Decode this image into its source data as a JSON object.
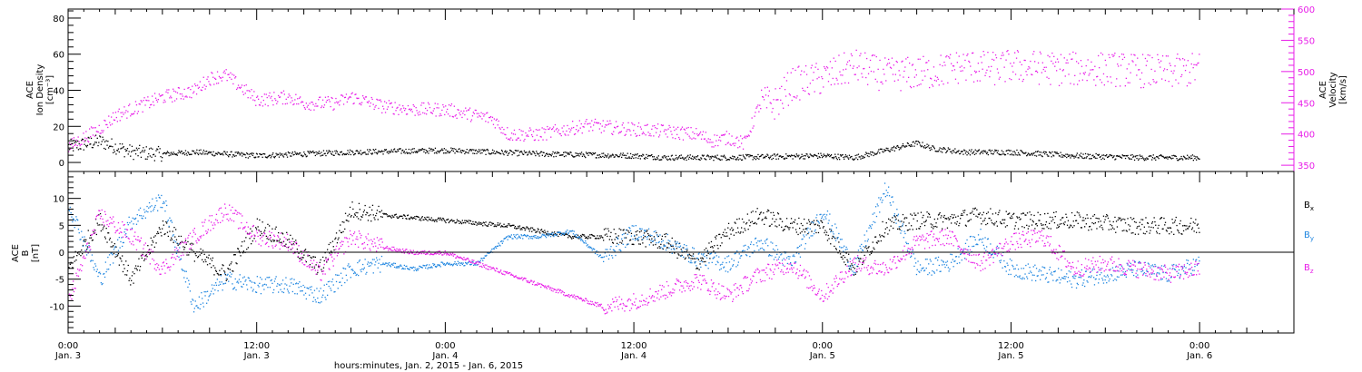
{
  "chart_data": [
    {
      "type": "scatter",
      "panel": "top",
      "ylabel_left": [
        "ACE",
        "Ion Density",
        "[cm⁻³]"
      ],
      "ylabel_right": [
        "ACE",
        "Velocity",
        "[km/s]"
      ],
      "ylim_left": [
        -5,
        85
      ],
      "yticks_left": [
        "0",
        "20",
        "40",
        "60",
        "80"
      ],
      "ylim_right": [
        340,
        600
      ],
      "yticks_right": [
        "350",
        "400",
        "450",
        "500",
        "550",
        "600"
      ],
      "series": [
        {
          "color": "#000000",
          "axis": "left",
          "points": [
            [
              0,
              9
            ],
            [
              2,
              12
            ],
            [
              4,
              6
            ],
            [
              6,
              5
            ],
            [
              8,
              6
            ],
            [
              12,
              4
            ],
            [
              18,
              6
            ],
            [
              24,
              7
            ],
            [
              30,
              5
            ],
            [
              36,
              4
            ],
            [
              38,
              3
            ],
            [
              42,
              3
            ],
            [
              48,
              4
            ],
            [
              50,
              3
            ],
            [
              54,
              11
            ],
            [
              55,
              8
            ],
            [
              57,
              6
            ],
            [
              60,
              6
            ],
            [
              64,
              4
            ],
            [
              68,
              3
            ],
            [
              72,
              3
            ]
          ]
        },
        {
          "color": "#e81ce8",
          "axis": "right",
          "points": [
            [
              0,
              380
            ],
            [
              2,
              410
            ],
            [
              3,
              430
            ],
            [
              6,
              460
            ],
            [
              8,
              470
            ],
            [
              9,
              490
            ],
            [
              10,
              495
            ],
            [
              12,
              455
            ],
            [
              14,
              460
            ],
            [
              15,
              450
            ],
            [
              17,
              450
            ],
            [
              18,
              460
            ],
            [
              20,
              445
            ],
            [
              22,
              440
            ],
            [
              24,
              440
            ],
            [
              25,
              435
            ],
            [
              27,
              425
            ],
            [
              28,
              400
            ],
            [
              30,
              400
            ],
            [
              32,
              410
            ],
            [
              33,
              415
            ],
            [
              35,
              410
            ],
            [
              38,
              405
            ],
            [
              40,
              400
            ],
            [
              41,
              390
            ],
            [
              42,
              395
            ],
            [
              43,
              385
            ],
            [
              44,
              450
            ],
            [
              45,
              450
            ],
            [
              46,
              480
            ],
            [
              48,
              490
            ],
            [
              50,
              510
            ],
            [
              52,
              495
            ],
            [
              55,
              500
            ],
            [
              57,
              510
            ],
            [
              59,
              505
            ],
            [
              60,
              510
            ],
            [
              63,
              505
            ],
            [
              66,
              505
            ],
            [
              70,
              500
            ],
            [
              72,
              505
            ]
          ]
        }
      ]
    },
    {
      "type": "scatter",
      "panel": "bottom",
      "ylabel": [
        "ACE",
        "B",
        "[nT]"
      ],
      "ylim": [
        -15,
        15
      ],
      "yticks": [
        "-10",
        "-5",
        "0",
        "5",
        "10"
      ],
      "legend": [
        {
          "label": "B",
          "sub": "x",
          "color": "#000000"
        },
        {
          "label": "B",
          "sub": "y",
          "color": "#1f86e0"
        },
        {
          "label": "B",
          "sub": "z",
          "color": "#e81ce8"
        }
      ],
      "series": [
        {
          "name": "Bx",
          "color": "#000000",
          "points": [
            [
              0,
              -3
            ],
            [
              2,
              6
            ],
            [
              4,
              -5
            ],
            [
              6,
              5
            ],
            [
              8,
              0
            ],
            [
              10,
              -4
            ],
            [
              12,
              5
            ],
            [
              14,
              2
            ],
            [
              16,
              -3
            ],
            [
              18,
              8
            ],
            [
              20,
              7
            ],
            [
              24,
              6
            ],
            [
              28,
              5
            ],
            [
              30,
              4
            ],
            [
              32,
              3
            ],
            [
              34,
              3
            ],
            [
              36,
              3
            ],
            [
              38,
              2
            ],
            [
              40,
              -2
            ],
            [
              42,
              4
            ],
            [
              44,
              7
            ],
            [
              46,
              5
            ],
            [
              48,
              5
            ],
            [
              50,
              -3
            ],
            [
              52,
              5
            ],
            [
              54,
              6
            ],
            [
              56,
              6
            ],
            [
              58,
              7
            ],
            [
              60,
              6
            ],
            [
              64,
              6
            ],
            [
              68,
              5
            ],
            [
              72,
              5
            ]
          ]
        },
        {
          "name": "By",
          "color": "#1f86e0",
          "points": [
            [
              0,
              9
            ],
            [
              2,
              -5
            ],
            [
              4,
              6
            ],
            [
              6,
              10
            ],
            [
              8,
              -10
            ],
            [
              10,
              -5
            ],
            [
              12,
              -6
            ],
            [
              14,
              -6
            ],
            [
              16,
              -8
            ],
            [
              18,
              -3
            ],
            [
              20,
              -2
            ],
            [
              22,
              -3
            ],
            [
              24,
              -2
            ],
            [
              26,
              -2
            ],
            [
              28,
              3
            ],
            [
              30,
              3
            ],
            [
              32,
              4
            ],
            [
              34,
              -1
            ],
            [
              36,
              4
            ],
            [
              38,
              2
            ],
            [
              40,
              -1
            ],
            [
              42,
              -2
            ],
            [
              44,
              2
            ],
            [
              46,
              -2
            ],
            [
              48,
              8
            ],
            [
              50,
              -3
            ],
            [
              52,
              12
            ],
            [
              54,
              -3
            ],
            [
              56,
              -2
            ],
            [
              58,
              3
            ],
            [
              60,
              -3
            ],
            [
              62,
              -4
            ],
            [
              64,
              -5
            ],
            [
              66,
              -4
            ],
            [
              68,
              -3
            ],
            [
              70,
              -4
            ],
            [
              72,
              -2
            ]
          ]
        },
        {
          "name": "Bz",
          "color": "#e81ce8",
          "points": [
            [
              0,
              -9
            ],
            [
              2,
              7
            ],
            [
              4,
              3
            ],
            [
              6,
              -3
            ],
            [
              8,
              3
            ],
            [
              10,
              8
            ],
            [
              12,
              3
            ],
            [
              14,
              2
            ],
            [
              16,
              -4
            ],
            [
              18,
              3
            ],
            [
              20,
              1
            ],
            [
              22,
              0
            ],
            [
              24,
              0
            ],
            [
              26,
              -2
            ],
            [
              28,
              -4
            ],
            [
              30,
              -6
            ],
            [
              32,
              -8
            ],
            [
              34,
              -10
            ],
            [
              36,
              -9
            ],
            [
              38,
              -7
            ],
            [
              40,
              -5
            ],
            [
              42,
              -8
            ],
            [
              44,
              -4
            ],
            [
              46,
              -2
            ],
            [
              48,
              -8
            ],
            [
              50,
              -2
            ],
            [
              52,
              -3
            ],
            [
              54,
              2
            ],
            [
              56,
              3
            ],
            [
              58,
              -2
            ],
            [
              60,
              2
            ],
            [
              62,
              3
            ],
            [
              64,
              -3
            ],
            [
              66,
              -2
            ],
            [
              68,
              -3
            ],
            [
              70,
              -4
            ],
            [
              72,
              -3
            ]
          ]
        }
      ]
    }
  ],
  "x_axis": {
    "range_hours": [
      0,
      78
    ],
    "major_ticks": [
      {
        "hour": 0,
        "time": "0:00",
        "date": "Jan. 3"
      },
      {
        "hour": 12,
        "time": "12:00",
        "date": "Jan. 3"
      },
      {
        "hour": 24,
        "time": "0:00",
        "date": "Jan. 4"
      },
      {
        "hour": 36,
        "time": "12:00",
        "date": "Jan. 4"
      },
      {
        "hour": 48,
        "time": "0:00",
        "date": "Jan. 5"
      },
      {
        "hour": 60,
        "time": "12:00",
        "date": "Jan. 5"
      },
      {
        "hour": 72,
        "time": "0:00",
        "date": "Jan. 6"
      }
    ],
    "label": "hours:minutes, Jan.  2, 2015 - Jan.  6, 2015"
  }
}
